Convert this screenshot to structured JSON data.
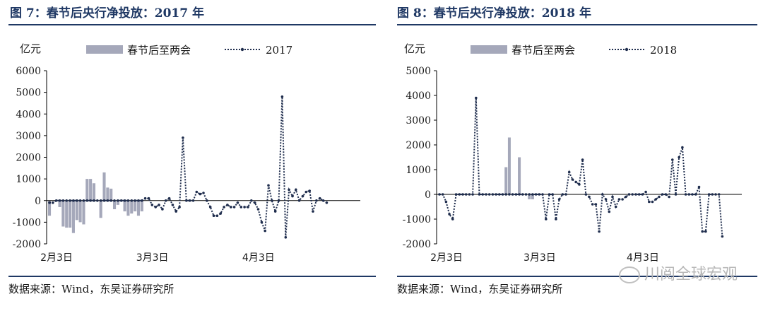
{
  "panels": [
    {
      "title": "图 7：春节后央行净投放：2017 年",
      "source": "数据来源：Wind，东吴证券研究所"
    },
    {
      "title": "图 8：春节后央行净投放：2018 年",
      "source": "数据来源：Wind，东吴证券研究所"
    }
  ],
  "watermark": "川阅全球宏观",
  "colors": {
    "bar": "#a5a8ba",
    "line": "#1f2d4d",
    "title": "#1f3864"
  },
  "chart_data": [
    {
      "type": "bar+line",
      "unit_label": "亿元",
      "ylim": [
        -2000,
        6000
      ],
      "yticks": [
        -2000,
        -1000,
        0,
        1000,
        2000,
        3000,
        4000,
        5000,
        6000
      ],
      "x_ticks": [
        {
          "index": 0,
          "label": "2月3日"
        },
        {
          "index": 28,
          "label": "3月3日"
        },
        {
          "index": 59,
          "label": "4月3日"
        }
      ],
      "n_days": 91,
      "legend_position": "top",
      "series": [
        {
          "name": "春节后至两会",
          "kind": "bar",
          "values": [
            -700,
            0,
            0,
            -300,
            -1200,
            -1250,
            -1250,
            -1500,
            -900,
            -1000,
            -1100,
            1000,
            1000,
            800,
            0,
            -800,
            1300,
            600,
            550,
            -400,
            -200,
            0,
            -500,
            -700,
            -600,
            -500,
            -700,
            -500
          ]
        },
        {
          "name": "2017",
          "kind": "line",
          "values": [
            -100,
            -100,
            0,
            0,
            0,
            0,
            0,
            0,
            0,
            0,
            0,
            0,
            0,
            0,
            0,
            0,
            0,
            0,
            0,
            0,
            0,
            0,
            0,
            0,
            0,
            0,
            0,
            0,
            100,
            100,
            -200,
            -300,
            -200,
            -400,
            0,
            100,
            -200,
            -500,
            -300,
            2900,
            0,
            0,
            0,
            400,
            300,
            350,
            0,
            -300,
            -700,
            -700,
            -600,
            -300,
            -200,
            -300,
            -300,
            -100,
            -300,
            -300,
            -300,
            0,
            -100,
            -400,
            -1000,
            -1400,
            700,
            0,
            -500,
            0,
            4800,
            -1700,
            500,
            200,
            500,
            0,
            200,
            400,
            450,
            -500,
            0,
            100,
            0,
            -100
          ]
        }
      ]
    },
    {
      "type": "bar+line",
      "unit_label": "亿元",
      "ylim": [
        -2000,
        5000
      ],
      "yticks": [
        -2000,
        -1000,
        0,
        1000,
        2000,
        3000,
        4000,
        5000
      ],
      "x_ticks": [
        {
          "index": 0,
          "label": "2月3日"
        },
        {
          "index": 28,
          "label": "3月3日"
        },
        {
          "index": 59,
          "label": "4月3日"
        }
      ],
      "n_days": 91,
      "legend_position": "top",
      "series": [
        {
          "name": "春节后至两会",
          "kind": "bar",
          "values": [
            0,
            0,
            0,
            0,
            0,
            0,
            0,
            0,
            0,
            0,
            0,
            0,
            0,
            0,
            0,
            0,
            0,
            0,
            0,
            0,
            1100,
            2300,
            0,
            0,
            1500,
            0,
            0,
            -200,
            -200
          ]
        },
        {
          "name": "2018",
          "kind": "line",
          "values": [
            0,
            0,
            -300,
            -800,
            -1000,
            0,
            0,
            0,
            0,
            0,
            0,
            3900,
            0,
            0,
            0,
            0,
            0,
            0,
            0,
            0,
            0,
            0,
            0,
            0,
            0,
            0,
            0,
            0,
            0,
            0,
            0,
            0,
            -1000,
            0,
            0,
            -1000,
            -200,
            0,
            0,
            900,
            600,
            500,
            400,
            1400,
            0,
            -100,
            -400,
            -400,
            -1500,
            0,
            -200,
            -700,
            -100,
            -500,
            -200,
            -200,
            -100,
            0,
            0,
            0,
            0,
            0,
            100,
            -300,
            -300,
            -200,
            -100,
            0,
            0,
            -100,
            1400,
            0,
            1500,
            1900,
            0,
            0,
            0,
            0,
            300,
            -1500,
            -1500,
            0,
            0,
            0,
            0,
            -1700
          ]
        }
      ]
    }
  ]
}
